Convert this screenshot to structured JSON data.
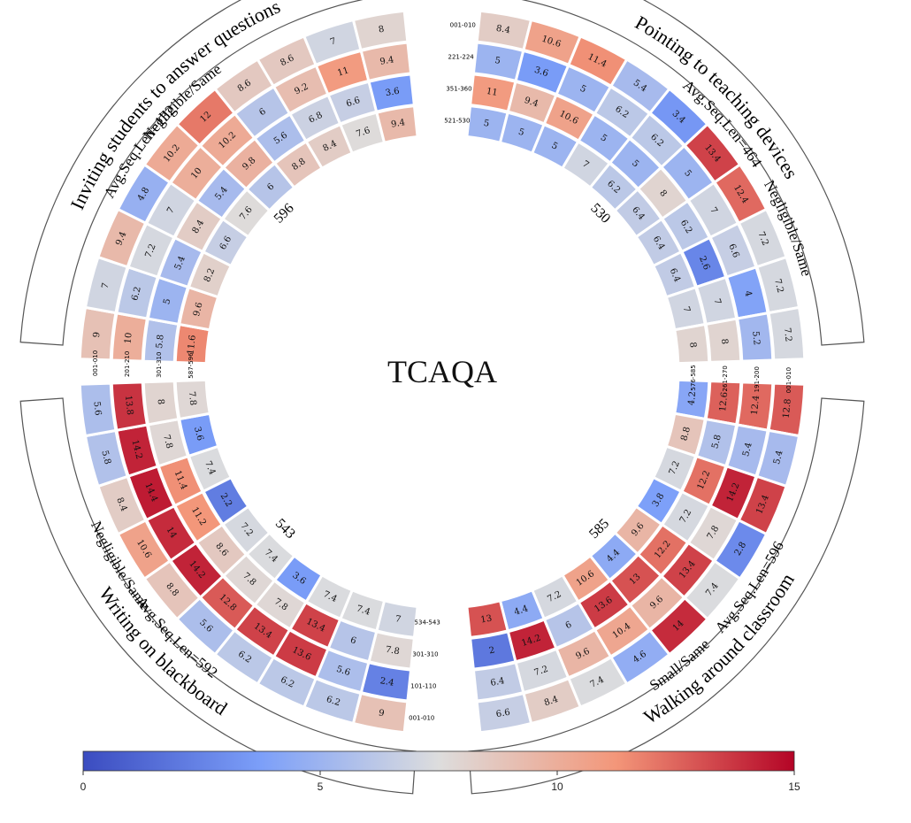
{
  "chart_data": {
    "type": "heatmap",
    "title": "TCAQA",
    "value_range": [
      0,
      15
    ],
    "colormap": "coolwarm",
    "colorbar_ticks": [
      0,
      5,
      10,
      15
    ],
    "sectors": [
      {
        "name": "Pointing to teaching devices",
        "subtitle": "Avg.Seq.Len=464",
        "tag": "Negligible/Same",
        "inner_number": "530",
        "ring_labels": [
          "001-010",
          "221-224",
          "351-360",
          "521-530"
        ],
        "values": [
          [
            8.4,
            10.6,
            11.4,
            5.4,
            3.4,
            13.4,
            12.4,
            7.2,
            7.2,
            7.2
          ],
          [
            5,
            3.6,
            5,
            6.2,
            6.2,
            5,
            7,
            6.6,
            4,
            5.2
          ],
          [
            11,
            9.4,
            10.6,
            5,
            5,
            8,
            6.2,
            2.6,
            7,
            8
          ],
          [
            5,
            5,
            5,
            7,
            6.2,
            6.4,
            6.4,
            6.4,
            7,
            8
          ]
        ]
      },
      {
        "name": "Walking around classroom",
        "subtitle": "Avg.Seq.Len=596",
        "tag": "Small/Same",
        "inner_number": "585",
        "ring_labels": [
          "001-010",
          "191-200",
          "261-270",
          "576-585"
        ],
        "values": [
          [
            12.8,
            5.4,
            13.4,
            2.8,
            7.4,
            14,
            4.6,
            7.4,
            8.4,
            6.6
          ],
          [
            12.4,
            5.4,
            14.2,
            7.8,
            13.4,
            9.6,
            10.4,
            9.6,
            7.2,
            6.4
          ],
          [
            12.6,
            5.8,
            12.2,
            7.2,
            12.2,
            13,
            13.6,
            6,
            14.2,
            2
          ],
          [
            4.2,
            8.8,
            7.2,
            3.8,
            9.6,
            4.4,
            10.6,
            7.2,
            4.4,
            13
          ]
        ]
      },
      {
        "name": "Writing on blackboard",
        "subtitle": "Avg.Seq.Len=592",
        "tag": "Negligible/Same",
        "inner_number": "543",
        "ring_labels": [
          "001-010",
          "101-110",
          "301-310",
          "534-543"
        ],
        "values": [
          [
            9,
            6.2,
            6.2,
            6.2,
            5.6,
            8.8,
            10.6,
            8.4,
            5.8,
            5.6
          ],
          [
            2.4,
            5.6,
            13.6,
            13.4,
            12.8,
            14.2,
            14,
            14.4,
            14.2,
            13.8
          ],
          [
            7.8,
            6,
            13.4,
            7.8,
            7.8,
            8.6,
            11.2,
            11.4,
            7.8,
            8
          ],
          [
            7,
            7.4,
            7.4,
            3.6,
            7.4,
            7.2,
            2.2,
            7.4,
            3.6,
            7.8
          ]
        ]
      },
      {
        "name": "Inviting students to answer questions",
        "subtitle": "Avg.Seq.Len=132",
        "tag": "Negligible/Same",
        "inner_number": "596",
        "ring_labels": [
          "001-010",
          "201-210",
          "301-310",
          "587-596"
        ],
        "values": [
          [
            9,
            7,
            9.4,
            4.8,
            10.2,
            12,
            8.6,
            8.6,
            7,
            8
          ],
          [
            10,
            6.2,
            7.2,
            7,
            10,
            10.2,
            6,
            9.2,
            11,
            9.4
          ],
          [
            5.8,
            5,
            5.4,
            8.4,
            5.4,
            9.8,
            5.6,
            6.8,
            6.6,
            3.6
          ],
          [
            11.6,
            9.6,
            8.2,
            6.6,
            7.6,
            6,
            8.8,
            8.4,
            7.6,
            9.4
          ]
        ]
      }
    ]
  }
}
